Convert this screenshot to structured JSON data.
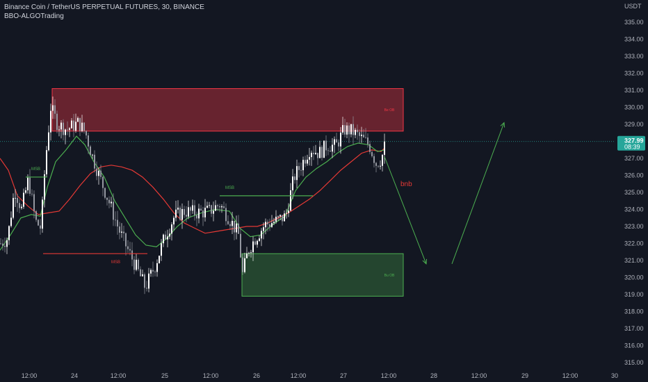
{
  "header": {
    "title": "Binance Coin / TetherUS PERPETUAL FUTURES, 30, BINANCE",
    "indicator": "BBO-ALGOTrading"
  },
  "price_axis": {
    "unit": "USDT",
    "current_price": "327.99",
    "countdown": "08:39"
  },
  "colors": {
    "background": "#131722",
    "bull_candle": "#ffffff",
    "bear_candle": "#9598a1",
    "bear_zone": "#f23645",
    "bull_zone": "#4caf50",
    "ma_fast": "#4caf50",
    "ma_slow": "#e53935",
    "arrow": "#4caf50",
    "price_tag": "#26a69a"
  },
  "annotations": {
    "bear_zone_label": "Be OB",
    "bull_zone_label": "Bu OB",
    "msb_labels": [
      "MSB",
      "MSB",
      "MSB"
    ],
    "note": "bnb"
  },
  "chart_data": {
    "type": "candlestick",
    "symbol": "Binance Coin / TetherUS PERPETUAL FUTURES",
    "interval": "30",
    "exchange": "BINANCE",
    "y_unit": "USDT",
    "ylim": [
      314.6,
      335.5
    ],
    "y_ticks": [
      "315.00",
      "316.00",
      "317.00",
      "318.00",
      "319.00",
      "320.00",
      "321.00",
      "322.00",
      "323.00",
      "324.00",
      "325.00",
      "326.00",
      "327.00",
      "328.00",
      "329.00",
      "330.00",
      "331.00",
      "332.00",
      "333.00",
      "334.00",
      "335.00"
    ],
    "x_ticks": [
      "12:00",
      "24",
      "12:00",
      "25",
      "12:00",
      "26",
      "12:00",
      "27",
      "12:00",
      "28",
      "12:00",
      "29",
      "12:00",
      "30"
    ],
    "zones": [
      {
        "label": "Be OB",
        "kind": "bearish",
        "from_slot": 75,
        "to_slot": 580,
        "low": 328.6,
        "high": 331.1
      },
      {
        "label": "Bu OB",
        "kind": "bullish",
        "from_slot": 348,
        "to_slot": 580,
        "low": 318.9,
        "high": 321.4
      }
    ],
    "msb_lines": [
      {
        "label": "MSB",
        "color": "green",
        "level": 325.9,
        "from_slot": 37,
        "to_slot": 68
      },
      {
        "label": "MSB",
        "color": "red",
        "level": 321.4,
        "from_slot": 62,
        "to_slot": 212
      },
      {
        "label": "MSB",
        "color": "green",
        "level": 324.8,
        "from_slot": 316,
        "to_slot": 450
      }
    ],
    "projection": [
      {
        "slot": 553,
        "price": 327.1
      },
      {
        "slot": 613,
        "price": 320.8
      },
      {
        "slot": 650,
        "price": 320.8
      },
      {
        "slot": 725,
        "price": 329.1
      }
    ],
    "last_price": 327.99,
    "anchors": [
      [
        0,
        322.0
      ],
      [
        10,
        322.3
      ],
      [
        20,
        325.2
      ],
      [
        30,
        324.0
      ],
      [
        40,
        325.8
      ],
      [
        50,
        323.3
      ],
      [
        58,
        322.9
      ],
      [
        64,
        326.7
      ],
      [
        72,
        330.0
      ],
      [
        82,
        329.0
      ],
      [
        95,
        328.7
      ],
      [
        112,
        329.1
      ],
      [
        122,
        328.5
      ],
      [
        132,
        327.1
      ],
      [
        145,
        325.6
      ],
      [
        158,
        324.2
      ],
      [
        170,
        322.8
      ],
      [
        182,
        321.7
      ],
      [
        195,
        320.6
      ],
      [
        208,
        319.4
      ],
      [
        222,
        320.7
      ],
      [
        236,
        322.4
      ],
      [
        250,
        323.6
      ],
      [
        265,
        323.9
      ],
      [
        280,
        323.8
      ],
      [
        300,
        323.9
      ],
      [
        315,
        324.3
      ],
      [
        330,
        323.4
      ],
      [
        342,
        322.5
      ],
      [
        348,
        320.2
      ],
      [
        356,
        321.6
      ],
      [
        366,
        322.3
      ],
      [
        380,
        323.1
      ],
      [
        395,
        323.3
      ],
      [
        410,
        323.6
      ],
      [
        422,
        325.9
      ],
      [
        432,
        326.6
      ],
      [
        445,
        327.6
      ],
      [
        458,
        327.3
      ],
      [
        470,
        327.8
      ],
      [
        482,
        327.7
      ],
      [
        494,
        328.7
      ],
      [
        505,
        328.6
      ],
      [
        518,
        328.2
      ],
      [
        530,
        327.8
      ],
      [
        540,
        326.7
      ],
      [
        548,
        327.0
      ],
      [
        553,
        327.99
      ]
    ],
    "ma_fast_points": [
      [
        0,
        321.6
      ],
      [
        15,
        322.5
      ],
      [
        30,
        323.5
      ],
      [
        45,
        323.7
      ],
      [
        58,
        323.6
      ],
      [
        68,
        325.3
      ],
      [
        80,
        326.8
      ],
      [
        95,
        327.5
      ],
      [
        110,
        328.3
      ],
      [
        122,
        327.8
      ],
      [
        135,
        326.8
      ],
      [
        150,
        325.9
      ],
      [
        165,
        324.5
      ],
      [
        180,
        323.5
      ],
      [
        195,
        322.5
      ],
      [
        210,
        321.9
      ],
      [
        225,
        321.8
      ],
      [
        240,
        322.3
      ],
      [
        255,
        323.0
      ],
      [
        270,
        323.5
      ],
      [
        290,
        323.8
      ],
      [
        310,
        324.0
      ],
      [
        330,
        323.9
      ],
      [
        345,
        322.9
      ],
      [
        360,
        322.4
      ],
      [
        375,
        322.5
      ],
      [
        392,
        323.1
      ],
      [
        410,
        323.6
      ],
      [
        425,
        325.1
      ],
      [
        440,
        325.9
      ],
      [
        455,
        326.4
      ],
      [
        470,
        326.8
      ],
      [
        485,
        327.3
      ],
      [
        500,
        327.7
      ],
      [
        515,
        327.9
      ],
      [
        530,
        327.8
      ],
      [
        543,
        327.4
      ],
      [
        553,
        327.5
      ]
    ],
    "ma_slow_points": [
      [
        0,
        327.0
      ],
      [
        12,
        326.3
      ],
      [
        25,
        324.8
      ],
      [
        40,
        324.2
      ],
      [
        55,
        323.7
      ],
      [
        70,
        323.8
      ],
      [
        85,
        323.9
      ],
      [
        100,
        324.6
      ],
      [
        115,
        325.4
      ],
      [
        130,
        326.1
      ],
      [
        145,
        326.5
      ],
      [
        160,
        326.6
      ],
      [
        175,
        326.5
      ],
      [
        190,
        326.3
      ],
      [
        205,
        325.9
      ],
      [
        220,
        325.3
      ],
      [
        235,
        324.6
      ],
      [
        250,
        323.8
      ],
      [
        265,
        323.2
      ],
      [
        280,
        322.9
      ],
      [
        295,
        322.6
      ],
      [
        310,
        322.7
      ],
      [
        325,
        322.8
      ],
      [
        340,
        322.9
      ],
      [
        355,
        323.0
      ],
      [
        370,
        323.0
      ],
      [
        385,
        323.2
      ],
      [
        400,
        323.5
      ],
      [
        415,
        323.8
      ],
      [
        430,
        324.2
      ],
      [
        445,
        324.6
      ],
      [
        460,
        325.1
      ],
      [
        475,
        325.7
      ],
      [
        490,
        326.3
      ],
      [
        505,
        326.8
      ],
      [
        520,
        327.3
      ],
      [
        535,
        327.5
      ],
      [
        548,
        327.4
      ],
      [
        553,
        327.6
      ]
    ]
  }
}
